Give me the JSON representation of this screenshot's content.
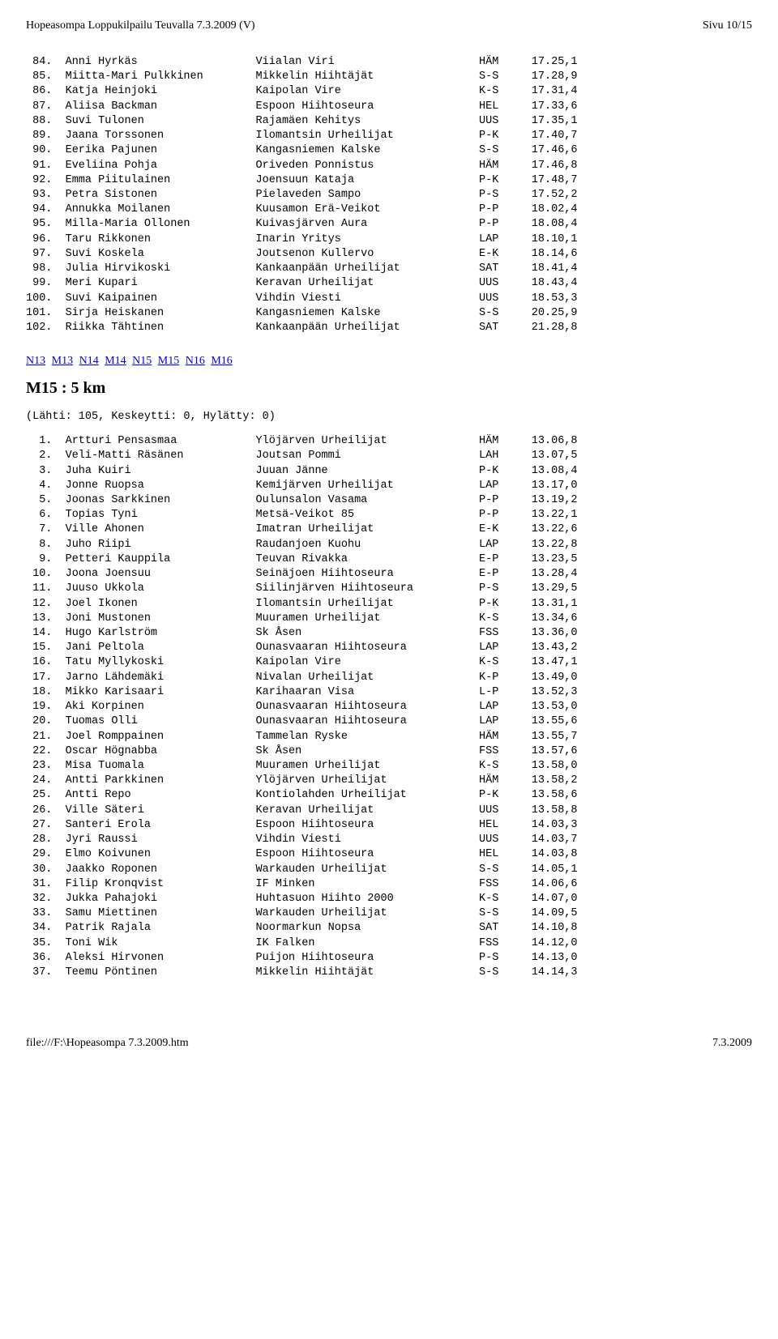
{
  "header": {
    "title_left": "Hopeasompa Loppukilpailu Teuvalla 7.3.2009 (V)",
    "title_right": "Sivu 10/15"
  },
  "block1": {
    "rows": [
      {
        "rank": " 84.",
        "name": "Anni Hyrkäs",
        "club": "Viialan Viri",
        "reg": "HÄM",
        "time": "17.25,1"
      },
      {
        "rank": " 85.",
        "name": "Miitta-Mari Pulkkinen",
        "club": "Mikkelin Hiihtäjät",
        "reg": "S-S",
        "time": "17.28,9"
      },
      {
        "rank": " 86.",
        "name": "Katja Heinjoki",
        "club": "Kaipolan Vire",
        "reg": "K-S",
        "time": "17.31,4"
      },
      {
        "rank": " 87.",
        "name": "Aliisa Backman",
        "club": "Espoon Hiihtoseura",
        "reg": "HEL",
        "time": "17.33,6"
      },
      {
        "rank": " 88.",
        "name": "Suvi Tulonen",
        "club": "Rajamäen Kehitys",
        "reg": "UUS",
        "time": "17.35,1"
      },
      {
        "rank": " 89.",
        "name": "Jaana Torssonen",
        "club": "Ilomantsin Urheilijat",
        "reg": "P-K",
        "time": "17.40,7"
      },
      {
        "rank": " 90.",
        "name": "Eerika Pajunen",
        "club": "Kangasniemen Kalske",
        "reg": "S-S",
        "time": "17.46,6"
      },
      {
        "rank": " 91.",
        "name": "Eveliina Pohja",
        "club": "Oriveden Ponnistus",
        "reg": "HÄM",
        "time": "17.46,8"
      },
      {
        "rank": " 92.",
        "name": "Emma Piitulainen",
        "club": "Joensuun Kataja",
        "reg": "P-K",
        "time": "17.48,7"
      },
      {
        "rank": " 93.",
        "name": "Petra Sistonen",
        "club": "Pielaveden Sampo",
        "reg": "P-S",
        "time": "17.52,2"
      },
      {
        "rank": " 94.",
        "name": "Annukka Moilanen",
        "club": "Kuusamon Erä-Veikot",
        "reg": "P-P",
        "time": "18.02,4"
      },
      {
        "rank": " 95.",
        "name": "Milla-Maria Ollonen",
        "club": "Kuivasjärven Aura",
        "reg": "P-P",
        "time": "18.08,4"
      },
      {
        "rank": " 96.",
        "name": "Taru Rikkonen",
        "club": "Inarin Yritys",
        "reg": "LAP",
        "time": "18.10,1"
      },
      {
        "rank": " 97.",
        "name": "Suvi Koskela",
        "club": "Joutsenon Kullervo",
        "reg": "E-K",
        "time": "18.14,6"
      },
      {
        "rank": " 98.",
        "name": "Julia Hirvikoski",
        "club": "Kankaanpään Urheilijat",
        "reg": "SAT",
        "time": "18.41,4"
      },
      {
        "rank": " 99.",
        "name": "Meri Kupari",
        "club": "Keravan Urheilijat",
        "reg": "UUS",
        "time": "18.43,4"
      },
      {
        "rank": "100.",
        "name": "Suvi Kaipainen",
        "club": "Vihdin Viesti",
        "reg": "UUS",
        "time": "18.53,3"
      },
      {
        "rank": "101.",
        "name": "Sirja Heiskanen",
        "club": "Kangasniemen Kalske",
        "reg": "S-S",
        "time": "20.25,9"
      },
      {
        "rank": "102.",
        "name": "Riikka Tähtinen",
        "club": "Kankaanpään Urheilijat",
        "reg": "SAT",
        "time": "21.28,8"
      }
    ]
  },
  "nav": [
    "N13",
    "M13",
    "N14",
    "M14",
    "N15",
    "M15",
    "N16",
    "M16"
  ],
  "section": {
    "title": "M15 : 5 km",
    "subhead": "(Lähti: 105, Keskeytti: 0, Hylätty: 0)"
  },
  "block2": {
    "rows": [
      {
        "rank": "  1.",
        "name": "Artturi Pensasmaa",
        "club": "Ylöjärven Urheilijat",
        "reg": "HÄM",
        "time": "13.06,8"
      },
      {
        "rank": "  2.",
        "name": "Veli-Matti Räsänen",
        "club": "Joutsan Pommi",
        "reg": "LAH",
        "time": "13.07,5"
      },
      {
        "rank": "  3.",
        "name": "Juha Kuiri",
        "club": "Juuan Jänne",
        "reg": "P-K",
        "time": "13.08,4"
      },
      {
        "rank": "  4.",
        "name": "Jonne Ruopsa",
        "club": "Kemijärven Urheilijat",
        "reg": "LAP",
        "time": "13.17,0"
      },
      {
        "rank": "  5.",
        "name": "Joonas Sarkkinen",
        "club": "Oulunsalon Vasama",
        "reg": "P-P",
        "time": "13.19,2"
      },
      {
        "rank": "  6.",
        "name": "Topias Tyni",
        "club": "Metsä-Veikot 85",
        "reg": "P-P",
        "time": "13.22,1"
      },
      {
        "rank": "  7.",
        "name": "Ville Ahonen",
        "club": "Imatran Urheilijat",
        "reg": "E-K",
        "time": "13.22,6"
      },
      {
        "rank": "  8.",
        "name": "Juho Riipi",
        "club": "Raudanjoen Kuohu",
        "reg": "LAP",
        "time": "13.22,8"
      },
      {
        "rank": "  9.",
        "name": "Petteri Kauppila",
        "club": "Teuvan Rivakka",
        "reg": "E-P",
        "time": "13.23,5"
      },
      {
        "rank": " 10.",
        "name": "Joona Joensuu",
        "club": "Seinäjoen Hiihtoseura",
        "reg": "E-P",
        "time": "13.28,4"
      },
      {
        "rank": " 11.",
        "name": "Juuso Ukkola",
        "club": "Siilinjärven Hiihtoseura",
        "reg": "P-S",
        "time": "13.29,5"
      },
      {
        "rank": " 12.",
        "name": "Joel Ikonen",
        "club": "Ilomantsin Urheilijat",
        "reg": "P-K",
        "time": "13.31,1"
      },
      {
        "rank": " 13.",
        "name": "Joni Mustonen",
        "club": "Muuramen Urheilijat",
        "reg": "K-S",
        "time": "13.34,6"
      },
      {
        "rank": " 14.",
        "name": "Hugo Karlström",
        "club": "Sk Åsen",
        "reg": "FSS",
        "time": "13.36,0"
      },
      {
        "rank": " 15.",
        "name": "Jani Peltola",
        "club": "Ounasvaaran Hiihtoseura",
        "reg": "LAP",
        "time": "13.43,2"
      },
      {
        "rank": " 16.",
        "name": "Tatu Myllykoski",
        "club": "Kaipolan Vire",
        "reg": "K-S",
        "time": "13.47,1"
      },
      {
        "rank": " 17.",
        "name": "Jarno Lähdemäki",
        "club": "Nivalan Urheilijat",
        "reg": "K-P",
        "time": "13.49,0"
      },
      {
        "rank": " 18.",
        "name": "Mikko Karisaari",
        "club": "Karihaaran Visa",
        "reg": "L-P",
        "time": "13.52,3"
      },
      {
        "rank": " 19.",
        "name": "Aki Korpinen",
        "club": "Ounasvaaran Hiihtoseura",
        "reg": "LAP",
        "time": "13.53,0"
      },
      {
        "rank": " 20.",
        "name": "Tuomas Olli",
        "club": "Ounasvaaran Hiihtoseura",
        "reg": "LAP",
        "time": "13.55,6"
      },
      {
        "rank": " 21.",
        "name": "Joel Romppainen",
        "club": "Tammelan Ryske",
        "reg": "HÄM",
        "time": "13.55,7"
      },
      {
        "rank": " 22.",
        "name": "Oscar Högnabba",
        "club": "Sk Åsen",
        "reg": "FSS",
        "time": "13.57,6"
      },
      {
        "rank": " 23.",
        "name": "Misa Tuomala",
        "club": "Muuramen Urheilijat",
        "reg": "K-S",
        "time": "13.58,0"
      },
      {
        "rank": " 24.",
        "name": "Antti Parkkinen",
        "club": "Ylöjärven Urheilijat",
        "reg": "HÄM",
        "time": "13.58,2"
      },
      {
        "rank": " 25.",
        "name": "Antti Repo",
        "club": "Kontiolahden Urheilijat",
        "reg": "P-K",
        "time": "13.58,6"
      },
      {
        "rank": " 26.",
        "name": "Ville Säteri",
        "club": "Keravan Urheilijat",
        "reg": "UUS",
        "time": "13.58,8"
      },
      {
        "rank": " 27.",
        "name": "Santeri Erola",
        "club": "Espoon Hiihtoseura",
        "reg": "HEL",
        "time": "14.03,3"
      },
      {
        "rank": " 28.",
        "name": "Jyri Raussi",
        "club": "Vihdin Viesti",
        "reg": "UUS",
        "time": "14.03,7"
      },
      {
        "rank": " 29.",
        "name": "Elmo Koivunen",
        "club": "Espoon Hiihtoseura",
        "reg": "HEL",
        "time": "14.03,8"
      },
      {
        "rank": " 30.",
        "name": "Jaakko Roponen",
        "club": "Warkauden Urheilijat",
        "reg": "S-S",
        "time": "14.05,1"
      },
      {
        "rank": " 31.",
        "name": "Filip Kronqvist",
        "club": "IF Minken",
        "reg": "FSS",
        "time": "14.06,6"
      },
      {
        "rank": " 32.",
        "name": "Jukka Pahajoki",
        "club": "Huhtasuon Hiihto 2000",
        "reg": "K-S",
        "time": "14.07,0"
      },
      {
        "rank": " 33.",
        "name": "Samu Miettinen",
        "club": "Warkauden Urheilijat",
        "reg": "S-S",
        "time": "14.09,5"
      },
      {
        "rank": " 34.",
        "name": "Patrik Rajala",
        "club": "Noormarkun Nopsa",
        "reg": "SAT",
        "time": "14.10,8"
      },
      {
        "rank": " 35.",
        "name": "Toni Wik",
        "club": "IK Falken",
        "reg": "FSS",
        "time": "14.12,0"
      },
      {
        "rank": " 36.",
        "name": "Aleksi Hirvonen",
        "club": "Puijon Hiihtoseura",
        "reg": "P-S",
        "time": "14.13,0"
      },
      {
        "rank": " 37.",
        "name": "Teemu Pöntinen",
        "club": "Mikkelin Hiihtäjät",
        "reg": "S-S",
        "time": "14.14,3"
      }
    ]
  },
  "footer": {
    "left": "file:///F:\\Hopeasompa 7.3.2009.htm",
    "right": "7.3.2009"
  },
  "cols": {
    "rank": 5,
    "name": 28,
    "club": 33,
    "reg": 6,
    "time": 8
  }
}
